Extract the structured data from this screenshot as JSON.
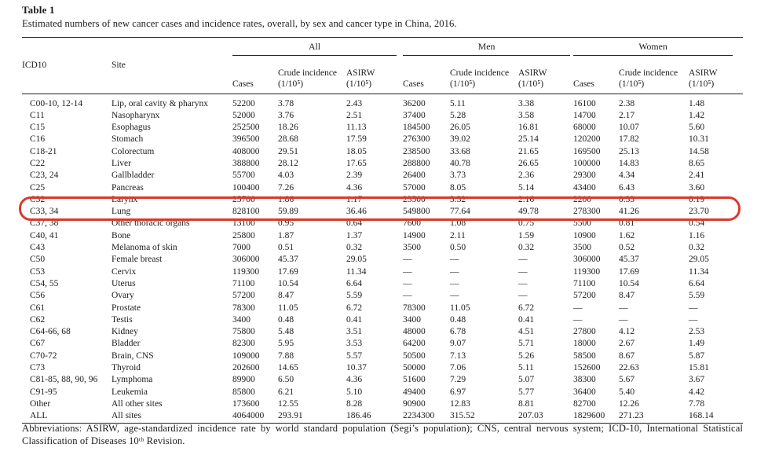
{
  "title": "Table 1",
  "caption": "Estimated numbers of new cancer cases and incidence rates, overall, by sex and cancer type in China, 2016.",
  "table": {
    "col_headers": {
      "icd10": "ICD10",
      "site": "Site"
    },
    "groups": [
      {
        "label": "All"
      },
      {
        "label": "Men"
      },
      {
        "label": "Women"
      }
    ],
    "subheaders": {
      "cases": "Cases",
      "crude": "Crude incidence",
      "asirw": "ASIRW",
      "unit": "(1/10⁵)"
    },
    "rows": [
      [
        "C00-10, 12-14",
        "Lip, oral cavity & pharynx",
        "52200",
        "3.78",
        "2.43",
        "36200",
        "5.11",
        "3.38",
        "16100",
        "2.38",
        "1.48"
      ],
      [
        "C11",
        "Nasopharynx",
        "52000",
        "3.76",
        "2.51",
        "37400",
        "5.28",
        "3.58",
        "14700",
        "2.17",
        "1.42"
      ],
      [
        "C15",
        "Esophagus",
        "252500",
        "18.26",
        "11.13",
        "184500",
        "26.05",
        "16.81",
        "68000",
        "10.07",
        "5.60"
      ],
      [
        "C16",
        "Stomach",
        "396500",
        "28.68",
        "17.59",
        "276300",
        "39.02",
        "25.14",
        "120200",
        "17.82",
        "10.31"
      ],
      [
        "C18-21",
        "Colorectum",
        "408000",
        "29.51",
        "18.05",
        "238500",
        "33.68",
        "21.65",
        "169500",
        "25.13",
        "14.58"
      ],
      [
        "C22",
        "Liver",
        "388800",
        "28.12",
        "17.65",
        "288800",
        "40.78",
        "26.65",
        "100000",
        "14.83",
        "8.65"
      ],
      [
        "C23, 24",
        "Gallbladder",
        "55700",
        "4.03",
        "2.39",
        "26400",
        "3.73",
        "2.36",
        "29300",
        "4.34",
        "2.41"
      ],
      [
        "C25",
        "Pancreas",
        "100400",
        "7.26",
        "4.36",
        "57000",
        "8.05",
        "5.14",
        "43400",
        "6.43",
        "3.60"
      ],
      [
        "C32",
        "Larynx",
        "25700",
        "1.86",
        "1.17",
        "23500",
        "3.32",
        "2.16",
        "2200",
        "0.33",
        "0.19"
      ],
      [
        "C33, 34",
        "Lung",
        "828100",
        "59.89",
        "36.46",
        "549800",
        "77.64",
        "49.78",
        "278300",
        "41.26",
        "23.70"
      ],
      [
        "C37, 38",
        "Other thoracic organs",
        "13100",
        "0.95",
        "0.64",
        "7600",
        "1.08",
        "0.75",
        "5500",
        "0.81",
        "0.54"
      ],
      [
        "C40, 41",
        "Bone",
        "25800",
        "1.87",
        "1.37",
        "14900",
        "2.11",
        "1.59",
        "10900",
        "1.62",
        "1.16"
      ],
      [
        "C43",
        "Melanoma of skin",
        "7000",
        "0.51",
        "0.32",
        "3500",
        "0.50",
        "0.32",
        "3500",
        "0.52",
        "0.32"
      ],
      [
        "C50",
        "Female breast",
        "306000",
        "45.37",
        "29.05",
        "—",
        "—",
        "—",
        "306000",
        "45.37",
        "29.05"
      ],
      [
        "C53",
        "Cervix",
        "119300",
        "17.69",
        "11.34",
        "—",
        "—",
        "—",
        "119300",
        "17.69",
        "11.34"
      ],
      [
        "C54, 55",
        "Uterus",
        "71100",
        "10.54",
        "6.64",
        "—",
        "—",
        "—",
        "71100",
        "10.54",
        "6.64"
      ],
      [
        "C56",
        "Ovary",
        "57200",
        "8.47",
        "5.59",
        "—",
        "—",
        "—",
        "57200",
        "8.47",
        "5.59"
      ],
      [
        "C61",
        "Prostate",
        "78300",
        "11.05",
        "6.72",
        "78300",
        "11.05",
        "6.72",
        "—",
        "—",
        "—"
      ],
      [
        "C62",
        "Testis",
        "3400",
        "0.48",
        "0.41",
        "3400",
        "0.48",
        "0.41",
        "—",
        "—",
        "—"
      ],
      [
        "C64-66, 68",
        "Kidney",
        "75800",
        "5.48",
        "3.51",
        "48000",
        "6.78",
        "4.51",
        "27800",
        "4.12",
        "2.53"
      ],
      [
        "C67",
        "Bladder",
        "82300",
        "5.95",
        "3.53",
        "64200",
        "9.07",
        "5.71",
        "18000",
        "2.67",
        "1.49"
      ],
      [
        "C70-72",
        "Brain, CNS",
        "109000",
        "7.88",
        "5.57",
        "50500",
        "7.13",
        "5.26",
        "58500",
        "8.67",
        "5.87"
      ],
      [
        "C73",
        "Thyroid",
        "202600",
        "14.65",
        "10.37",
        "50000",
        "7.06",
        "5.11",
        "152600",
        "22.63",
        "15.81"
      ],
      [
        "C81-85, 88, 90, 96",
        "Lymphoma",
        "89900",
        "6.50",
        "4.36",
        "51600",
        "7.29",
        "5.07",
        "38300",
        "5.67",
        "3.67"
      ],
      [
        "C91-95",
        "Leukemia",
        "85800",
        "6.21",
        "5.10",
        "49400",
        "6.97",
        "5.77",
        "36400",
        "5.40",
        "4.42"
      ],
      [
        "Other",
        "All other sites",
        "173600",
        "12.55",
        "8.28",
        "90900",
        "12.83",
        "8.81",
        "82700",
        "12.26",
        "7.78"
      ],
      [
        "ALL",
        "All sites",
        "4064000",
        "293.91",
        "186.46",
        "2234300",
        "315.52",
        "207.03",
        "1829600",
        "271.23",
        "168.14"
      ]
    ]
  },
  "highlight": {
    "row_icd10": "C33, 34",
    "color": "#d93b2c"
  },
  "footnote": "Abbreviations: ASIRW, age-standardized incidence rate by world standard population (Segi’s population); CNS, central nervous system; ICD-10, International Statistical Classification of Diseases 10ᵗʰ Revision."
}
